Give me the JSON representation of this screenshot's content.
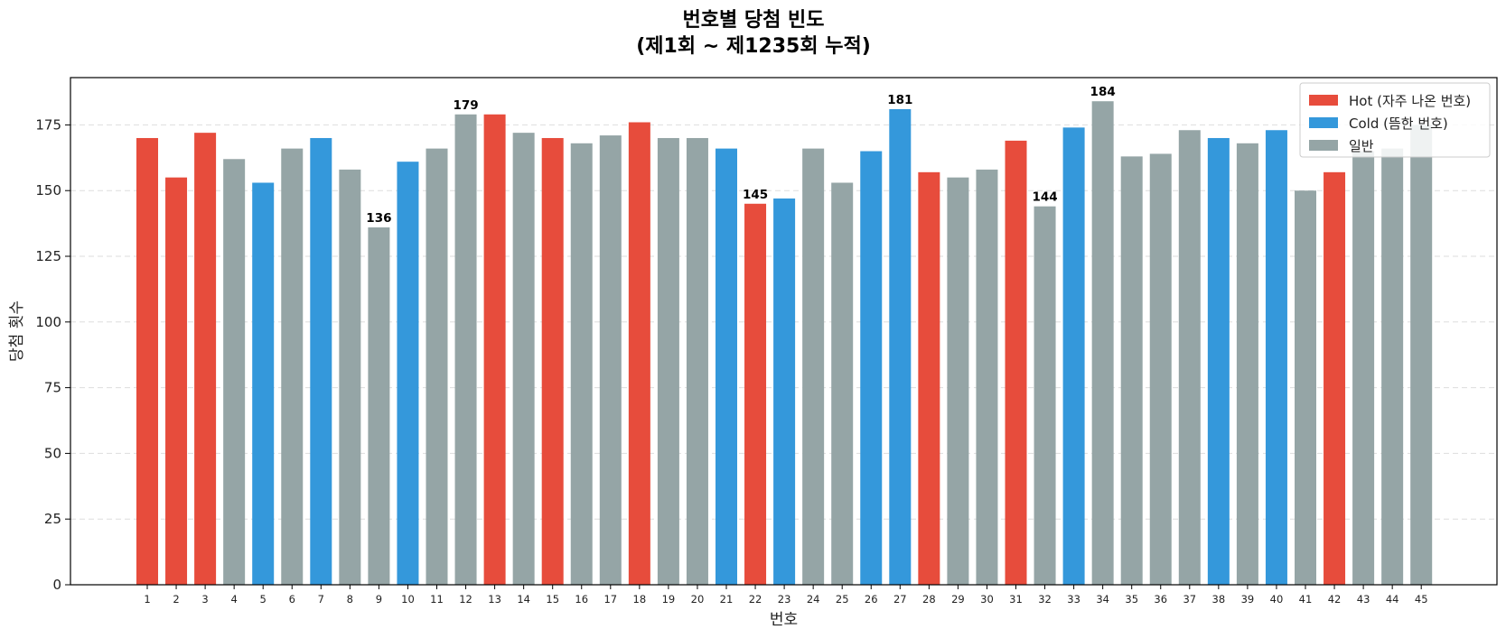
{
  "chart_data": {
    "type": "bar",
    "title_lines": [
      "번호별 당첨 빈도",
      "(제1회 ~ 제1235회 누적)"
    ],
    "xlabel": "번호",
    "ylabel": "당첨 횟수",
    "ylim": [
      0,
      193
    ],
    "yticks": [
      0,
      25,
      50,
      75,
      100,
      125,
      150,
      175
    ],
    "grid": "horizontal dashed",
    "legend_position": "top-right",
    "categories": [
      "1",
      "2",
      "3",
      "4",
      "5",
      "6",
      "7",
      "8",
      "9",
      "10",
      "11",
      "12",
      "13",
      "14",
      "15",
      "16",
      "17",
      "18",
      "19",
      "20",
      "21",
      "22",
      "23",
      "24",
      "25",
      "26",
      "27",
      "28",
      "29",
      "30",
      "31",
      "32",
      "33",
      "34",
      "35",
      "36",
      "37",
      "38",
      "39",
      "40",
      "41",
      "42",
      "43",
      "44",
      "45"
    ],
    "values": [
      170,
      155,
      172,
      162,
      153,
      166,
      170,
      158,
      136,
      161,
      166,
      179,
      179,
      172,
      170,
      168,
      171,
      176,
      170,
      170,
      166,
      145,
      147,
      166,
      153,
      165,
      181,
      157,
      155,
      158,
      169,
      144,
      174,
      184,
      163,
      164,
      173,
      170,
      168,
      173,
      150,
      157,
      165,
      166,
      175
    ],
    "groups": [
      "hot",
      "hot",
      "hot",
      "normal",
      "cold",
      "normal",
      "cold",
      "normal",
      "normal",
      "cold",
      "normal",
      "normal",
      "hot",
      "normal",
      "hot",
      "normal",
      "normal",
      "hot",
      "normal",
      "normal",
      "cold",
      "hot",
      "cold",
      "normal",
      "normal",
      "cold",
      "cold",
      "hot",
      "normal",
      "normal",
      "hot",
      "normal",
      "cold",
      "normal",
      "normal",
      "normal",
      "normal",
      "cold",
      "normal",
      "cold",
      "normal",
      "hot",
      "normal",
      "normal",
      "normal"
    ],
    "annotated": [
      {
        "category": "9",
        "label": "136"
      },
      {
        "category": "12",
        "label": "179"
      },
      {
        "category": "22",
        "label": "145"
      },
      {
        "category": "27",
        "label": "181"
      },
      {
        "category": "32",
        "label": "144"
      },
      {
        "category": "34",
        "label": "184"
      }
    ],
    "legend": [
      {
        "key": "hot",
        "label": "Hot (자주 나온 번호)",
        "color": "#e74c3c"
      },
      {
        "key": "cold",
        "label": "Cold (뜸한 번호)",
        "color": "#3498db"
      },
      {
        "key": "normal",
        "label": "일반",
        "color": "#95a5a6"
      }
    ]
  }
}
